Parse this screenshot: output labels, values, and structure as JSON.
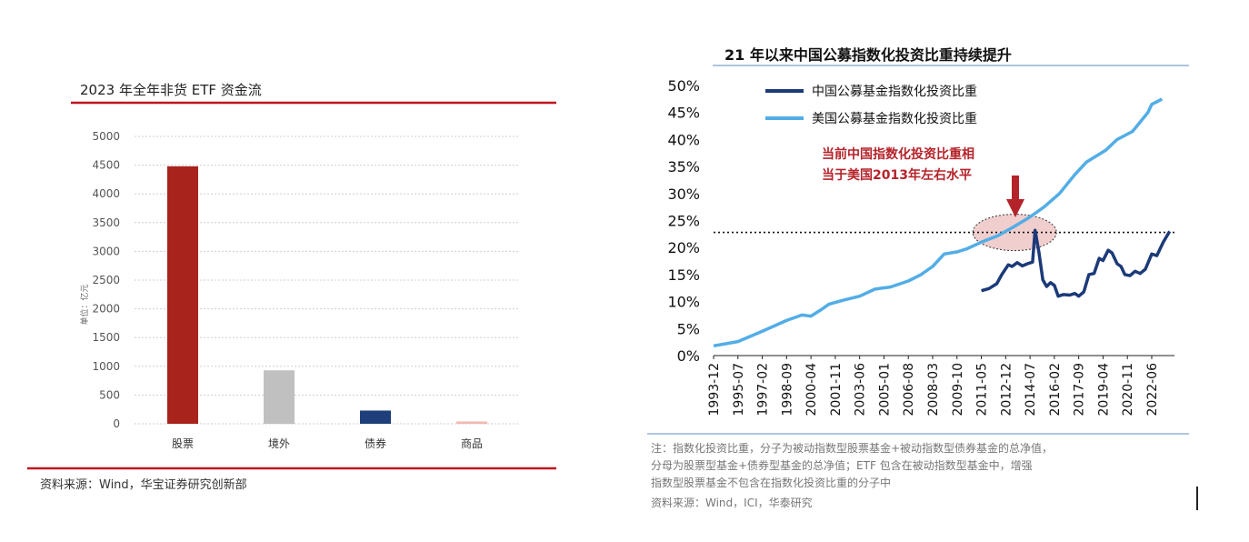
{
  "chart_data": [
    {
      "type": "bar",
      "title": "2023 年全年非货 ETF 资金流",
      "ylabel": "单位：亿元",
      "categories": [
        "股票",
        "境外",
        "债券",
        "商品"
      ],
      "values": [
        4480,
        930,
        230,
        40
      ],
      "colors": [
        "#a8231c",
        "#c0c0c0",
        "#1f3f7a",
        "#f2b8b0"
      ],
      "ylim": [
        0,
        5000
      ],
      "yticks": [
        "0",
        "500",
        "1000",
        "1500",
        "2000",
        "2500",
        "3000",
        "3500",
        "4000",
        "4500",
        "5000"
      ],
      "grid": true,
      "source": "资料来源：Wind，华宝证券研究创新部"
    },
    {
      "type": "line",
      "title": "21 年以来中国公募指数化投资比重持续提升",
      "xticks": [
        "1993-12",
        "1995-07",
        "1997-02",
        "1998-09",
        "2000-04",
        "2001-11",
        "2003-06",
        "2005-01",
        "2006-08",
        "2008-03",
        "2009-10",
        "2011-05",
        "2012-12",
        "2014-07",
        "2016-02",
        "2017-09",
        "2019-04",
        "2020-11",
        "2022-06"
      ],
      "yticks": [
        "0%",
        "5%",
        "10%",
        "15%",
        "20%",
        "25%",
        "30%",
        "35%",
        "40%",
        "45%",
        "50%"
      ],
      "ylim": [
        0,
        50
      ],
      "legend_position": "top-left",
      "series": [
        {
          "name": "中国公募基金指数化投资比重",
          "color": "#1c3a78",
          "points": [
            [
              "2011-05",
              12.0
            ],
            [
              "2011-11",
              12.4
            ],
            [
              "2012-05",
              13.3
            ],
            [
              "2012-09",
              15.0
            ],
            [
              "2013-02",
              16.8
            ],
            [
              "2013-05",
              16.5
            ],
            [
              "2013-09",
              17.2
            ],
            [
              "2014-01",
              16.6
            ],
            [
              "2014-05",
              17.0
            ],
            [
              "2014-09",
              17.3
            ],
            [
              "2014-11",
              23.2
            ],
            [
              "2015-02",
              19.0
            ],
            [
              "2015-05",
              14.0
            ],
            [
              "2015-08",
              12.8
            ],
            [
              "2015-11",
              13.5
            ],
            [
              "2016-02",
              13.0
            ],
            [
              "2016-05",
              11.0
            ],
            [
              "2016-09",
              11.3
            ],
            [
              "2017-02",
              11.2
            ],
            [
              "2017-06",
              11.5
            ],
            [
              "2017-09",
              11.0
            ],
            [
              "2018-01",
              11.8
            ],
            [
              "2018-05",
              15.0
            ],
            [
              "2018-09",
              15.2
            ],
            [
              "2019-01",
              18.0
            ],
            [
              "2019-04",
              17.6
            ],
            [
              "2019-08",
              19.5
            ],
            [
              "2019-11",
              19.0
            ],
            [
              "2020-03",
              17.0
            ],
            [
              "2020-06",
              16.5
            ],
            [
              "2020-09",
              15.0
            ],
            [
              "2021-01",
              14.8
            ],
            [
              "2021-05",
              15.6
            ],
            [
              "2021-09",
              15.2
            ],
            [
              "2022-01",
              16.0
            ],
            [
              "2022-06",
              18.8
            ],
            [
              "2022-10",
              18.5
            ],
            [
              "2023-03",
              21.0
            ],
            [
              "2023-08",
              23.0
            ]
          ]
        },
        {
          "name": "美国公募基金指数化投资比重",
          "color": "#52ade6",
          "points": [
            [
              "1993-12",
              1.8
            ],
            [
              "1995-07",
              2.6
            ],
            [
              "1997-02",
              4.5
            ],
            [
              "1998-09",
              6.5
            ],
            [
              "1999-09",
              7.5
            ],
            [
              "2000-04",
              7.3
            ],
            [
              "2000-12",
              8.5
            ],
            [
              "2001-06",
              9.5
            ],
            [
              "2002-06",
              10.3
            ],
            [
              "2003-06",
              11.0
            ],
            [
              "2004-06",
              12.3
            ],
            [
              "2005-06",
              12.7
            ],
            [
              "2006-08",
              13.8
            ],
            [
              "2007-06",
              15.0
            ],
            [
              "2008-03",
              16.5
            ],
            [
              "2008-12",
              18.8
            ],
            [
              "2009-10",
              19.2
            ],
            [
              "2010-06",
              19.8
            ],
            [
              "2011-05",
              21.0
            ],
            [
              "2012-06",
              22.2
            ],
            [
              "2013-06",
              23.8
            ],
            [
              "2014-06",
              25.5
            ],
            [
              "2015-06",
              27.5
            ],
            [
              "2016-06",
              30.0
            ],
            [
              "2017-06",
              33.5
            ],
            [
              "2018-03",
              35.8
            ],
            [
              "2019-06",
              38.0
            ],
            [
              "2020-03",
              40.0
            ],
            [
              "2021-03",
              41.5
            ],
            [
              "2022-03",
              45.0
            ],
            [
              "2022-06",
              46.5
            ],
            [
              "2023-02",
              47.5
            ]
          ]
        }
      ],
      "reference_line": {
        "y": 22.8,
        "style": "dotted"
      },
      "annotation": {
        "text_lines": [
          "当前中国指数化投资比重相",
          "当于美国2013年左右水平"
        ],
        "color": "#b5232a",
        "ellipse_center": [
          "2013-07",
          22.8
        ]
      },
      "note_lines": [
        "注：指数化投资比重，分子为被动指数型股票基金+被动指数型债券基金的总净值，",
        "分母为股票型基金+债券型基金的总净值；ETF 包含在被动指数型基金中，增强",
        "指数型股票基金不包含在指数化投资比重的分子中",
        "资料来源：Wind，ICI，华泰研究"
      ]
    }
  ]
}
